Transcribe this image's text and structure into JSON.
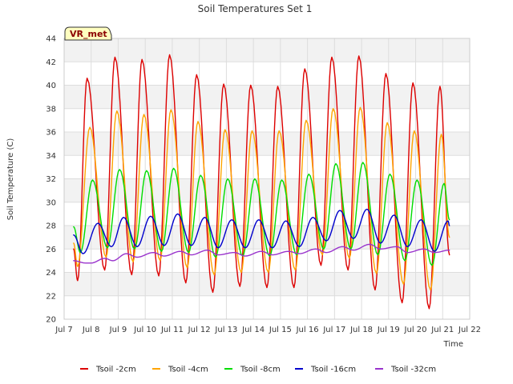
{
  "chart_data": {
    "type": "line",
    "title": "Soil Temperatures Set 1",
    "xlabel": "Time",
    "ylabel": "Soil Temperature (C)",
    "badge": "VR_met",
    "ylim": [
      20,
      44
    ],
    "yticks": [
      20,
      22,
      24,
      26,
      28,
      30,
      32,
      34,
      36,
      38,
      40,
      42,
      44
    ],
    "xlim": [
      7,
      22
    ],
    "xticks": [
      {
        "v": 7,
        "label": "Jul 7"
      },
      {
        "v": 8,
        "label": "Jul 8"
      },
      {
        "v": 9,
        "label": "Jul 9"
      },
      {
        "v": 10,
        "label": "Jul 10"
      },
      {
        "v": 11,
        "label": "Jul 11"
      },
      {
        "v": 12,
        "label": "Jul 12"
      },
      {
        "v": 13,
        "label": "Jul 13"
      },
      {
        "v": 14,
        "label": "Jul 14"
      },
      {
        "v": 15,
        "label": "Jul 15"
      },
      {
        "v": 16,
        "label": "Jul 16"
      },
      {
        "v": 17,
        "label": "Jul 17"
      },
      {
        "v": 18,
        "label": "Jul 18"
      },
      {
        "v": 19,
        "label": "Jul 19"
      },
      {
        "v": 20,
        "label": "Jul 20"
      },
      {
        "v": 21,
        "label": "Jul 21"
      },
      {
        "v": 22,
        "label": "Jul 22"
      }
    ],
    "grid": true,
    "legend_position": "bottom",
    "series": [
      {
        "name": "Tsoil -2cm",
        "color": "#dd0000",
        "points": [
          [
            7.35,
            26.0
          ],
          [
            7.5,
            23.3
          ],
          [
            7.85,
            40.6
          ],
          [
            8.5,
            24.2
          ],
          [
            8.88,
            42.4
          ],
          [
            9.5,
            23.8
          ],
          [
            9.88,
            42.2
          ],
          [
            10.5,
            23.7
          ],
          [
            10.9,
            42.6
          ],
          [
            11.5,
            23.1
          ],
          [
            11.9,
            40.9
          ],
          [
            12.5,
            22.3
          ],
          [
            12.9,
            40.1
          ],
          [
            13.5,
            22.8
          ],
          [
            13.9,
            40.0
          ],
          [
            14.5,
            22.7
          ],
          [
            14.9,
            39.9
          ],
          [
            15.5,
            22.7
          ],
          [
            15.9,
            41.4
          ],
          [
            16.5,
            24.6
          ],
          [
            16.9,
            42.4
          ],
          [
            17.5,
            24.2
          ],
          [
            17.9,
            42.5
          ],
          [
            18.5,
            22.5
          ],
          [
            18.9,
            41.0
          ],
          [
            19.5,
            21.4
          ],
          [
            19.9,
            40.2
          ],
          [
            20.5,
            20.9
          ],
          [
            20.9,
            39.9
          ],
          [
            21.25,
            25.5
          ]
        ]
      },
      {
        "name": "Tsoil -4cm",
        "color": "#ffa500",
        "points": [
          [
            7.35,
            26.5
          ],
          [
            7.5,
            24.5
          ],
          [
            7.95,
            36.4
          ],
          [
            8.55,
            25.3
          ],
          [
            8.95,
            37.8
          ],
          [
            9.55,
            24.9
          ],
          [
            9.95,
            37.5
          ],
          [
            10.55,
            25.0
          ],
          [
            10.95,
            37.9
          ],
          [
            11.55,
            24.4
          ],
          [
            11.95,
            36.9
          ],
          [
            12.55,
            23.8
          ],
          [
            12.95,
            36.2
          ],
          [
            13.55,
            24.0
          ],
          [
            13.95,
            36.1
          ],
          [
            14.55,
            24.0
          ],
          [
            14.95,
            36.1
          ],
          [
            15.55,
            24.2
          ],
          [
            15.95,
            37.0
          ],
          [
            16.55,
            25.5
          ],
          [
            16.95,
            38.0
          ],
          [
            17.55,
            25.2
          ],
          [
            17.95,
            38.1
          ],
          [
            18.55,
            23.9
          ],
          [
            18.95,
            36.8
          ],
          [
            19.55,
            23.0
          ],
          [
            19.95,
            36.1
          ],
          [
            20.55,
            22.5
          ],
          [
            20.95,
            35.8
          ],
          [
            21.25,
            27.0
          ]
        ]
      },
      {
        "name": "Tsoil -8cm",
        "color": "#00dd00",
        "points": [
          [
            7.35,
            27.9
          ],
          [
            7.6,
            25.7
          ],
          [
            8.05,
            31.9
          ],
          [
            8.6,
            26.1
          ],
          [
            9.05,
            32.8
          ],
          [
            9.6,
            26.0
          ],
          [
            10.05,
            32.7
          ],
          [
            10.6,
            25.8
          ],
          [
            11.05,
            32.9
          ],
          [
            11.6,
            25.7
          ],
          [
            12.05,
            32.3
          ],
          [
            12.6,
            25.3
          ],
          [
            13.05,
            32.0
          ],
          [
            13.6,
            25.4
          ],
          [
            14.05,
            32.0
          ],
          [
            14.6,
            25.4
          ],
          [
            15.05,
            31.9
          ],
          [
            15.6,
            25.5
          ],
          [
            16.05,
            32.4
          ],
          [
            16.6,
            26.0
          ],
          [
            17.05,
            33.3
          ],
          [
            17.6,
            26.0
          ],
          [
            18.05,
            33.4
          ],
          [
            18.6,
            25.5
          ],
          [
            19.05,
            32.4
          ],
          [
            19.6,
            25.0
          ],
          [
            20.05,
            31.9
          ],
          [
            20.6,
            24.6
          ],
          [
            21.05,
            31.6
          ],
          [
            21.25,
            28.5
          ]
        ]
      },
      {
        "name": "Tsoil -16cm",
        "color": "#0000cc",
        "points": [
          [
            7.35,
            27.2
          ],
          [
            7.7,
            25.6
          ],
          [
            8.25,
            28.2
          ],
          [
            8.75,
            26.2
          ],
          [
            9.2,
            28.7
          ],
          [
            9.7,
            26.2
          ],
          [
            10.2,
            28.8
          ],
          [
            10.7,
            26.3
          ],
          [
            11.2,
            29.0
          ],
          [
            11.7,
            26.3
          ],
          [
            12.2,
            28.7
          ],
          [
            12.7,
            26.1
          ],
          [
            13.2,
            28.5
          ],
          [
            13.7,
            26.1
          ],
          [
            14.2,
            28.5
          ],
          [
            14.7,
            26.1
          ],
          [
            15.2,
            28.4
          ],
          [
            15.7,
            26.2
          ],
          [
            16.2,
            28.7
          ],
          [
            16.7,
            26.7
          ],
          [
            17.2,
            29.3
          ],
          [
            17.7,
            26.9
          ],
          [
            18.2,
            29.4
          ],
          [
            18.7,
            26.5
          ],
          [
            19.2,
            28.9
          ],
          [
            19.7,
            26.2
          ],
          [
            20.2,
            28.5
          ],
          [
            20.7,
            25.8
          ],
          [
            21.2,
            28.4
          ],
          [
            21.25,
            28.0
          ]
        ]
      },
      {
        "name": "Tsoil -32cm",
        "color": "#9933cc",
        "points": [
          [
            7.35,
            25.0
          ],
          [
            7.8,
            24.8
          ],
          [
            8.0,
            24.8
          ],
          [
            8.5,
            25.2
          ],
          [
            8.8,
            25.0
          ],
          [
            9.3,
            25.6
          ],
          [
            9.7,
            25.3
          ],
          [
            10.3,
            25.7
          ],
          [
            10.7,
            25.4
          ],
          [
            11.3,
            25.8
          ],
          [
            11.7,
            25.5
          ],
          [
            12.3,
            25.9
          ],
          [
            12.7,
            25.5
          ],
          [
            13.3,
            25.7
          ],
          [
            13.7,
            25.4
          ],
          [
            14.3,
            25.8
          ],
          [
            14.7,
            25.5
          ],
          [
            15.3,
            25.8
          ],
          [
            15.7,
            25.6
          ],
          [
            16.3,
            26.0
          ],
          [
            16.7,
            25.7
          ],
          [
            17.3,
            26.2
          ],
          [
            17.7,
            25.9
          ],
          [
            18.3,
            26.4
          ],
          [
            18.7,
            26.0
          ],
          [
            19.3,
            26.2
          ],
          [
            19.7,
            25.7
          ],
          [
            20.3,
            26.0
          ],
          [
            20.7,
            25.7
          ],
          [
            21.25,
            25.9
          ]
        ]
      }
    ]
  }
}
